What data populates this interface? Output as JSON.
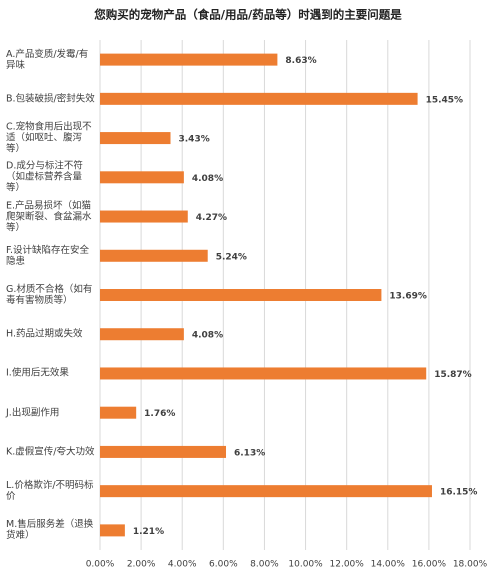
{
  "chart_data": {
    "type": "bar",
    "orientation": "horizontal",
    "title": "您购买的宠物产品（食品/用品/药品等）时遇到的主要问题是",
    "categories": [
      "A.产品变质/发霉/有异味",
      "B.包装破损/密封失效",
      "C.宠物食用后出现不适（如呕吐、腹泻等）",
      "D.成分与标注不符（如虚标营养含量等）",
      "E.产品易损坏（如猫爬架断裂、食盆漏水等）",
      "F.设计缺陷存在安全隐患",
      "G.材质不合格（如有毒有害物质等）",
      "H.药品过期或失效",
      "I.使用后无效果",
      "J.出现副作用",
      "K.虚假宣传/夸大功效",
      "L.价格欺诈/不明码标价",
      "M.售后服务差（退换货难）"
    ],
    "values": [
      8.63,
      15.45,
      3.43,
      4.08,
      4.27,
      5.24,
      13.69,
      4.08,
      15.87,
      1.76,
      6.13,
      16.15,
      1.21
    ],
    "value_labels": [
      "8.63%",
      "15.45%",
      "3.43%",
      "4.08%",
      "4.27%",
      "5.24%",
      "13.69%",
      "4.08%",
      "15.87%",
      "1.76%",
      "6.13%",
      "16.15%",
      "1.21%"
    ],
    "color": "#ed7d31",
    "xlim": [
      0,
      18
    ],
    "xticks": [
      {
        "value": 0,
        "label": "0.00%"
      },
      {
        "value": 2,
        "label": "2.00%"
      },
      {
        "value": 4,
        "label": "4.00%"
      },
      {
        "value": 6,
        "label": "6.00%"
      },
      {
        "value": 8,
        "label": "8.00%"
      },
      {
        "value": 10,
        "label": "10.00%"
      },
      {
        "value": 12,
        "label": "12.00%"
      },
      {
        "value": 14,
        "label": "14.00%"
      },
      {
        "value": 16,
        "label": "16.00%"
      },
      {
        "value": 18,
        "label": "18.00%"
      }
    ],
    "grid": true
  }
}
